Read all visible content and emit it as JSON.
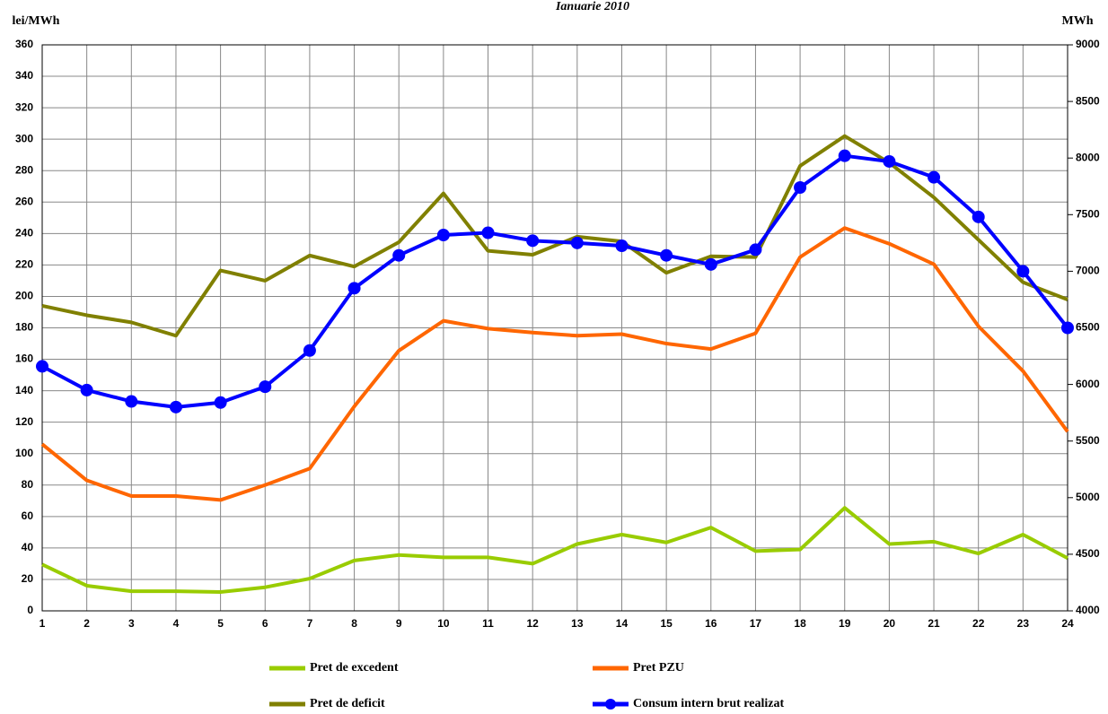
{
  "chart_data": {
    "type": "line",
    "title": "Ianuarie 2010",
    "y_label": "lei/MWh",
    "y2_label": "MWh",
    "x": [
      1,
      2,
      3,
      4,
      5,
      6,
      7,
      8,
      9,
      10,
      11,
      12,
      13,
      14,
      15,
      16,
      17,
      18,
      19,
      20,
      21,
      22,
      23,
      24
    ],
    "xlim": [
      1,
      24
    ],
    "xticks": [
      1,
      2,
      3,
      4,
      5,
      6,
      7,
      8,
      9,
      10,
      11,
      12,
      13,
      14,
      15,
      16,
      17,
      18,
      19,
      20,
      21,
      22,
      23,
      24
    ],
    "ylim": [
      0,
      360
    ],
    "yticks": [
      0,
      20,
      40,
      60,
      80,
      100,
      120,
      140,
      160,
      180,
      200,
      220,
      240,
      260,
      280,
      300,
      320,
      340,
      360
    ],
    "y2lim": [
      4000,
      9000
    ],
    "y2ticks": [
      4000,
      4500,
      5000,
      5500,
      6000,
      6500,
      7000,
      7500,
      8000,
      8500,
      9000
    ],
    "grid": true,
    "series": [
      {
        "name": "Pret de excedent",
        "color": "#99cc00",
        "values": [
          29.5,
          16,
          12.5,
          12.5,
          12,
          15,
          20.5,
          32,
          35.5,
          34,
          34,
          30,
          42.5,
          48.5,
          43.5,
          53,
          38,
          39,
          65.5,
          42.5,
          44,
          36.5,
          48.5,
          33.5
        ]
      },
      {
        "name": "Pret PZU",
        "color": "#ff6600",
        "values": [
          106,
          83,
          73,
          73,
          70.5,
          80,
          90.5,
          130,
          165.5,
          184.5,
          179.5,
          177,
          175,
          176,
          170,
          166.5,
          176.5,
          225,
          243.5,
          233.5,
          220.5,
          181,
          152.5,
          114
        ]
      },
      {
        "name": "Pret de deficit",
        "color": "#808000",
        "values": [
          194,
          188,
          183.5,
          175,
          216.5,
          210,
          226,
          219,
          234.5,
          265.5,
          229,
          226.5,
          238,
          235,
          215,
          225.5,
          225,
          283,
          302,
          285,
          263,
          236,
          209,
          198
        ]
      },
      {
        "name": "Consum intern brut realizat",
        "color": "#0000ff",
        "axis": "y2",
        "marker": "circle",
        "values": [
          6160,
          5950,
          5850,
          5800,
          5840,
          5980,
          6300,
          6850,
          7140,
          7320,
          7340,
          7270,
          7250,
          7225,
          7140,
          7060,
          7190,
          7740,
          8020,
          7970,
          7830,
          7480,
          7000,
          6500
        ]
      }
    ]
  }
}
